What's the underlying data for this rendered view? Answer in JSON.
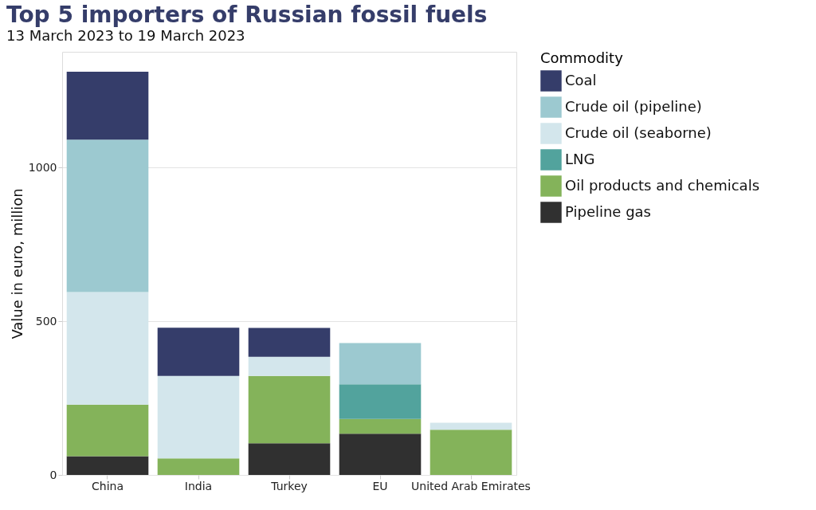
{
  "chart_data": {
    "type": "bar",
    "title": "Top 5 importers of Russian fossil fuels",
    "subtitle": "13 March 2023 to 19 March 2023",
    "ylabel": "Value in euro, million",
    "legend_title": "Commodity",
    "categories": [
      "China",
      "India",
      "Turkey",
      "EU",
      "United Arab Emirates"
    ],
    "stacked": true,
    "ylim": [
      0,
      1376
    ],
    "yticks": [
      0,
      500,
      1000
    ],
    "grid": "y",
    "legend": "right",
    "series": [
      {
        "name": "Pipeline gas",
        "color": "#303030",
        "values": [
          61,
          null,
          103,
          134,
          null
        ]
      },
      {
        "name": "Oil products and chemicals",
        "color": "#84b35a",
        "values": [
          168,
          54,
          219,
          48,
          147
        ]
      },
      {
        "name": "LNG",
        "color": "#52a39d",
        "values": [
          null,
          null,
          null,
          113,
          null
        ]
      },
      {
        "name": "Crude oil (seaborne)",
        "color": "#d3e6ec",
        "values": [
          366,
          268,
          62,
          null,
          23
        ]
      },
      {
        "name": "Crude oil (pipeline)",
        "color": "#9cc9d0",
        "values": [
          495,
          null,
          null,
          134,
          null
        ]
      },
      {
        "name": "Coal",
        "color": "#353d6a",
        "values": [
          221,
          157,
          94,
          null,
          null
        ]
      }
    ]
  }
}
